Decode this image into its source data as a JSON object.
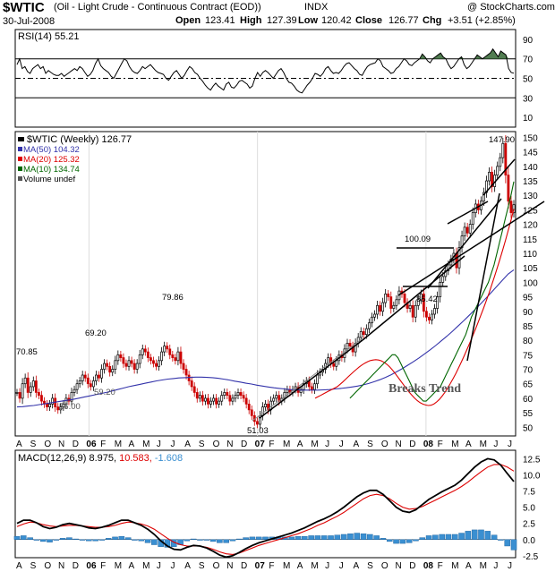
{
  "header": {
    "symbol": "$WTIC",
    "name": "(Oil - Light Crude - Continuous Contract (EOD))",
    "exchange": "INDX",
    "watermark": "@ StockCharts.com",
    "date": "30-Jul-2008",
    "open_label": "Open",
    "open": "123.41",
    "high_label": "High",
    "high": "127.39",
    "low_label": "Low",
    "low": "120.42",
    "close_label": "Close",
    "close": "126.77",
    "chg_label": "Chg",
    "chg": "+3.51 (+2.85%)"
  },
  "colors": {
    "bull": "#000000",
    "bear": "#cc0000",
    "ma50": "#3333aa",
    "ma20": "#dd0000",
    "ma10": "#006600",
    "rsi_fill": "#336633",
    "macd_hist": "#3a8fd1"
  },
  "chart_data": [
    {
      "type": "line",
      "panel": "rsi",
      "title": "RSI(14) 55.21",
      "ylim": [
        0,
        100
      ],
      "y_ticks": [
        10,
        30,
        50,
        70,
        90
      ],
      "reference_lines": [
        30,
        50,
        70
      ],
      "series": [
        {
          "name": "RSI(14) 55.21",
          "values": [
            64,
            70,
            60,
            62,
            57,
            55,
            60,
            62,
            64,
            60,
            62,
            55,
            58,
            56,
            54,
            53,
            53,
            55,
            52,
            54,
            56,
            58,
            60,
            58,
            62,
            60,
            56,
            52,
            54,
            58,
            65,
            70,
            63,
            60,
            58,
            56,
            52,
            50,
            55,
            60,
            65,
            70,
            68,
            62,
            58,
            56,
            55,
            58,
            62,
            60,
            62,
            64,
            61,
            58,
            56,
            55,
            54,
            50,
            48,
            52,
            56,
            58,
            54,
            50,
            53,
            58,
            62,
            60,
            56,
            54,
            50,
            47,
            43,
            40,
            38,
            42,
            45,
            42,
            40,
            38,
            44,
            46,
            41,
            40,
            43,
            47,
            48,
            46,
            44,
            40,
            42,
            50,
            56,
            52,
            56,
            58,
            56,
            53,
            50,
            54,
            58,
            60,
            56,
            50,
            46,
            45,
            42,
            38,
            36,
            35,
            39,
            43,
            46,
            50,
            55,
            54,
            52,
            55,
            60,
            62,
            58,
            55,
            56,
            55,
            58,
            62,
            65,
            66,
            63,
            60,
            58,
            54,
            53,
            58,
            62,
            64,
            65,
            66,
            70,
            68,
            62,
            60,
            58,
            55,
            56,
            60,
            62,
            66,
            70,
            68,
            64,
            63,
            66,
            68,
            70,
            75,
            72,
            68,
            66,
            70,
            72,
            74,
            76,
            72,
            70,
            64,
            60,
            62,
            66,
            70,
            72,
            64,
            60,
            62,
            66,
            70,
            74,
            72,
            70,
            72,
            74,
            76,
            80,
            76,
            72,
            78,
            76,
            74,
            60,
            56,
            55.21
          ]
        }
      ]
    },
    {
      "type": "candlestick",
      "panel": "price",
      "title": "$WTIC (Weekly) 126.77",
      "ylim": [
        47,
        152
      ],
      "y_ticks": [
        50,
        55,
        60,
        65,
        70,
        75,
        80,
        85,
        90,
        95,
        100,
        105,
        110,
        115,
        120,
        125,
        130,
        135,
        140,
        145,
        150
      ],
      "x_tick_labels": [
        "A",
        "S",
        "O",
        "N",
        "D",
        "06",
        "F",
        "M",
        "A",
        "M",
        "J",
        "J",
        "A",
        "S",
        "O",
        "N",
        "D",
        "07",
        "F",
        "M",
        "A",
        "M",
        "J",
        "J",
        "A",
        "S",
        "O",
        "N",
        "D",
        "08",
        "F",
        "M",
        "A",
        "M",
        "J",
        "J"
      ],
      "series": [
        {
          "name": "$WTIC (Weekly) 126.77",
          "closes": [
            62,
            60,
            65,
            67,
            62,
            64,
            66,
            62,
            61,
            59,
            58,
            57,
            58,
            60,
            57,
            56,
            57,
            58,
            60,
            59,
            62,
            63,
            65,
            66,
            68,
            67,
            65,
            64,
            66,
            68,
            67,
            70,
            72,
            71,
            69,
            70,
            73,
            75,
            74,
            72,
            71,
            73,
            72,
            70,
            72,
            75,
            77,
            76,
            74,
            73,
            72,
            71,
            73,
            76,
            78,
            77,
            75,
            74,
            73,
            76,
            72,
            70,
            68,
            66,
            64,
            62,
            60,
            61,
            59,
            60,
            58,
            59,
            60,
            58,
            59,
            61,
            62,
            61,
            59,
            60,
            61,
            62,
            61,
            60,
            58,
            56,
            54,
            52,
            51.03,
            54,
            57,
            58,
            56,
            59,
            60,
            61,
            59,
            60,
            62,
            63,
            62,
            63,
            64,
            62,
            63,
            65,
            66,
            64,
            63,
            65,
            68,
            69,
            70,
            72,
            74,
            72,
            71,
            73,
            75,
            74,
            77,
            79,
            78,
            76,
            79,
            81,
            83,
            82,
            84,
            86,
            88,
            89,
            92,
            90,
            93,
            96,
            95,
            91,
            92,
            94,
            97,
            96,
            93,
            91,
            92,
            88,
            92,
            94,
            96,
            90,
            88,
            87,
            89,
            91,
            95,
            100,
            102,
            104,
            106,
            108,
            110,
            105,
            112,
            116,
            119,
            117,
            120,
            124,
            127,
            125,
            128,
            131,
            135,
            138,
            133,
            137,
            140,
            143,
            147.9,
            137,
            128,
            124,
            126.77
          ]
        },
        {
          "name": "MA(50) 104.32",
          "values": [
            57,
            57.1,
            57.3,
            57.5,
            57.8,
            58.1,
            58.4,
            58.7,
            59,
            59.3,
            59.6,
            60,
            60.4,
            60.8,
            61.2,
            61.6,
            62,
            62.5,
            63,
            63.5,
            64,
            64.4,
            64.8,
            65.2,
            65.6,
            66,
            66.3,
            66.6,
            66.8,
            67,
            67.1,
            67.2,
            67.3,
            67.3,
            67.2,
            67.1,
            66.9,
            66.6,
            66.3,
            65.9,
            65.6,
            65.2,
            64.9,
            64.5,
            64.2,
            63.9,
            63.6,
            63.4,
            63.2,
            63,
            62.9,
            62.8,
            62.8,
            62.8,
            62.8,
            62.9,
            63,
            63.2,
            63.4,
            63.6,
            63.9,
            64.2,
            64.6,
            65.1,
            65.7,
            66.4,
            67.2,
            68.1,
            69.1,
            70.2,
            71.4,
            72.6,
            73.9,
            75.3,
            76.7,
            78.2,
            79.8,
            81.4,
            83.1,
            84.9,
            86.7,
            88.6,
            90.5,
            92.5,
            94.5,
            96.6,
            98.7,
            100.8,
            102.9,
            104.32
          ]
        },
        {
          "name": "MA(20) 125.32",
          "values": [
            60,
            60.5,
            61,
            61.5,
            62,
            62.5,
            63,
            63.5,
            64,
            64.8,
            65.6,
            66.5,
            67.4,
            68.3,
            69.2,
            70,
            70.8,
            71.5,
            72.1,
            72.6,
            73,
            73.2,
            73.3,
            73.2,
            72.9,
            72.4,
            71.7,
            70.8,
            69.8,
            68.6,
            67.3,
            66,
            64.7,
            63.4,
            62.2,
            61.1,
            60.1,
            59.2,
            58.5,
            58,
            57.7,
            57.5,
            57.6,
            58,
            58.7,
            59.6,
            60.7,
            62,
            63.5,
            65.1,
            66.8,
            68.6,
            70.5,
            72.5,
            74.6,
            76.8,
            79,
            81.3,
            83.6,
            86,
            88.5,
            91,
            93.6,
            96.3,
            99.1,
            102,
            105,
            108.1,
            111.3,
            114.6,
            118,
            121.5,
            125.32
          ]
        },
        {
          "name": "MA(10) 134.74",
          "values": [
            60,
            61,
            62,
            63,
            64,
            65,
            66,
            67,
            68,
            69,
            70,
            71,
            72,
            73,
            74,
            75,
            75,
            74,
            72,
            70,
            68,
            66,
            64,
            62,
            61,
            60,
            59,
            59,
            60,
            61,
            62,
            63,
            64,
            66,
            68,
            70,
            72,
            74,
            76,
            78,
            80,
            82,
            85,
            88,
            90,
            92,
            94,
            96,
            98,
            100,
            103,
            106,
            110,
            114,
            118,
            122,
            126,
            130,
            134.74
          ]
        },
        {
          "name": "Volume undef",
          "values": []
        }
      ],
      "annotations": [
        "70.85",
        "69.20",
        "59.20",
        "56.00",
        "79.86",
        "51.03",
        "100.09",
        "85.42",
        "147.90",
        "Breaks Trend"
      ]
    },
    {
      "type": "line",
      "panel": "macd",
      "title": "MACD(12,26,9) 8.975, 10.583, -1.608",
      "ylim": [
        -2.8,
        13.8
      ],
      "y_ticks": [
        -2.5,
        0.0,
        2.5,
        5.0,
        7.5,
        10.0,
        12.5
      ],
      "series": [
        {
          "name": "MACD(12,26,9) 8.975",
          "values": [
            2.5,
            3,
            3,
            2.6,
            2,
            1.7,
            1.9,
            2.3,
            2.5,
            2.3,
            2.1,
            1.8,
            1.7,
            1.9,
            2.2,
            2.6,
            3,
            3,
            2.6,
            2.2,
            1.6,
            0.8,
            -0.2,
            -1,
            -1.5,
            -1.6,
            -1.2,
            -0.9,
            -1,
            -1.3,
            -1.8,
            -2.4,
            -2.7,
            -2.5,
            -2,
            -1.4,
            -0.9,
            -0.5,
            -0.2,
            0.1,
            0.4,
            0.7,
            1,
            1.4,
            1.8,
            2.3,
            2.8,
            3.2,
            3.7,
            4.3,
            5,
            5.8,
            6.6,
            7.2,
            7.6,
            7.6,
            7,
            6,
            5,
            4.4,
            4.2,
            4.6,
            5.4,
            6.2,
            6.8,
            7.4,
            7.9,
            8.4,
            9.2,
            10.2,
            11.2,
            12,
            12.5,
            12.3,
            11.5,
            10.2,
            8.975
          ]
        },
        {
          "name": "10.583",
          "values": [
            2,
            2.4,
            2.7,
            2.6,
            2.3,
            2.1,
            2,
            2.1,
            2.2,
            2.2,
            2.1,
            2,
            1.9,
            1.9,
            2,
            2.2,
            2.5,
            2.7,
            2.6,
            2.4,
            2.1,
            1.6,
            0.9,
            0.2,
            -0.4,
            -0.8,
            -1,
            -1,
            -1,
            -1.2,
            -1.5,
            -1.9,
            -2.2,
            -2.3,
            -2.1,
            -1.7,
            -1.3,
            -0.9,
            -0.6,
            -0.3,
            0,
            0.3,
            0.6,
            0.9,
            1.3,
            1.7,
            2.2,
            2.6,
            3.1,
            3.6,
            4.2,
            4.9,
            5.6,
            6.3,
            6.8,
            7,
            6.8,
            6.3,
            5.6,
            5,
            4.7,
            4.8,
            5.1,
            5.6,
            6.1,
            6.6,
            7.1,
            7.6,
            8.2,
            8.9,
            9.7,
            10.5,
            11.2,
            11.6,
            11.6,
            11.2,
            10.583
          ]
        },
        {
          "name": "-1.608",
          "values": [
            0.5,
            0.6,
            0.3,
            0,
            -0.3,
            -0.4,
            -0.1,
            0.2,
            0.3,
            0.1,
            0,
            -0.2,
            -0.2,
            0,
            0.2,
            0.4,
            0.5,
            0.3,
            0,
            -0.2,
            -0.5,
            -0.8,
            -1.1,
            -1.2,
            -1.1,
            -0.8,
            -0.2,
            0.1,
            0,
            -0.1,
            -0.3,
            -0.5,
            -0.5,
            -0.2,
            0.1,
            0.3,
            0.4,
            0.4,
            0.4,
            0.4,
            0.4,
            0.4,
            0.4,
            0.5,
            0.5,
            0.6,
            0.6,
            0.6,
            0.6,
            0.7,
            0.8,
            0.9,
            1,
            0.9,
            0.8,
            0.6,
            0.2,
            -0.3,
            -0.6,
            -0.6,
            -0.5,
            -0.2,
            0.3,
            0.6,
            0.7,
            0.8,
            0.8,
            0.8,
            1,
            1.3,
            1.5,
            1.5,
            1.3,
            0.7,
            -0.1,
            -1,
            -1.608
          ]
        }
      ]
    }
  ]
}
